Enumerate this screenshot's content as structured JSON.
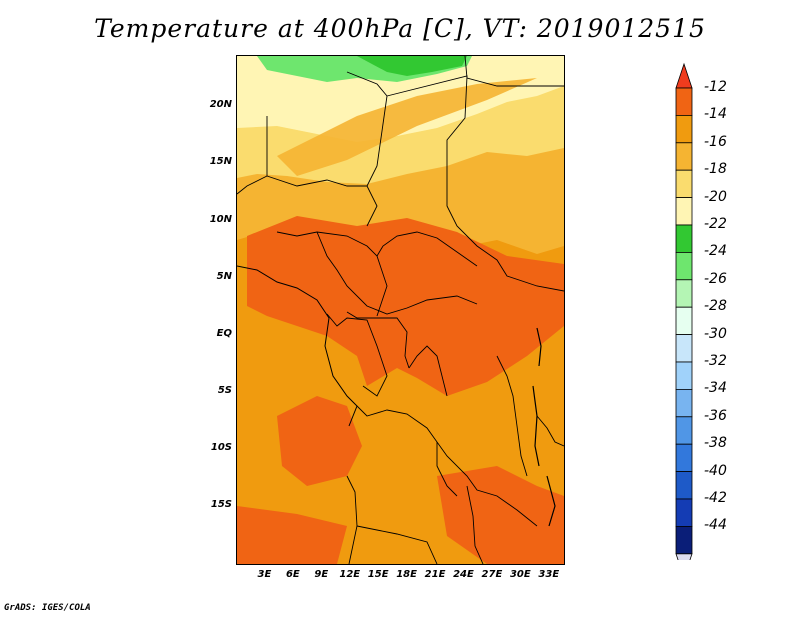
{
  "title": "Temperature at 400hPa [C], VT: 2019012515",
  "credit": "GrADS: IGES/COLA",
  "map": {
    "lat_labels": [
      "20N",
      "15N",
      "10N",
      "5N",
      "EQ",
      "5S",
      "10S",
      "15S"
    ],
    "lat_values": [
      20,
      15,
      10,
      5,
      0,
      -5,
      -10,
      -15
    ],
    "lon_labels": [
      "3E",
      "6E",
      "9E",
      "12E",
      "15E",
      "18E",
      "21E",
      "24E",
      "27E",
      "30E",
      "33E"
    ],
    "lon_values": [
      3,
      6,
      9,
      12,
      15,
      18,
      21,
      24,
      27,
      30,
      33
    ],
    "lon_range": [
      0,
      34.5
    ],
    "lat_range": [
      -20,
      24.5
    ]
  },
  "colorbar": {
    "labels": [
      "-12",
      "-14",
      "-16",
      "-18",
      "-20",
      "-22",
      "-24",
      "-26",
      "-28",
      "-30",
      "-32",
      "-34",
      "-36",
      "-38",
      "-40",
      "-42",
      "-44"
    ],
    "colors": [
      "#f03c1e",
      "#f06414",
      "#f09b0f",
      "#f5b432",
      "#fadc6e",
      "#fff5b4",
      "#32c832",
      "#6ee66e",
      "#b4f5b4",
      "#e6fff0",
      "#c8e6fa",
      "#a0d2fa",
      "#78b4f0",
      "#5096e6",
      "#3278dc",
      "#1e5ac8",
      "#143cb4",
      "#0a1e78",
      "#dcdcf0"
    ]
  }
}
